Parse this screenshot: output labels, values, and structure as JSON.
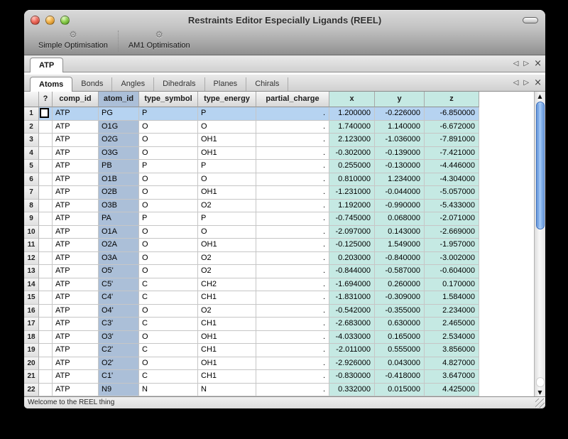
{
  "window": {
    "title": "Restraints Editor Especially Ligands (REEL)",
    "status_text": "Welcome to the REEL thing"
  },
  "icons": {
    "gear": "⚙",
    "tab_prev": "◁",
    "tab_next": "▷",
    "tab_close": "×",
    "scroll_up": "▲",
    "scroll_down": "▼"
  },
  "colors": {
    "traffic_close": "#ee6a5c",
    "traffic_minimize": "#f2b24c",
    "traffic_zoom": "#8ccf4f",
    "selection_blue": "#b6d3f1",
    "atom_id_column": "#abbfd8",
    "coordinate_columns": "#c5e9e3"
  },
  "toolbar": {
    "items": [
      {
        "label": "Simple Optimisation"
      },
      {
        "label": "AM1 Optimisation"
      }
    ]
  },
  "document_tabs": {
    "tabs": [
      {
        "label": "ATP",
        "active": true
      }
    ]
  },
  "section_tabs": {
    "tabs": [
      {
        "label": "Atoms",
        "active": true
      },
      {
        "label": "Bonds"
      },
      {
        "label": "Angles"
      },
      {
        "label": "Dihedrals"
      },
      {
        "label": "Planes"
      },
      {
        "label": "Chirals"
      }
    ]
  },
  "table": {
    "columns": [
      "?",
      "comp_id",
      "atom_id",
      "type_symbol",
      "type_energy",
      "partial_charge",
      "x",
      "y",
      "z"
    ],
    "selected_row": 1,
    "rows": [
      {
        "num": "1",
        "comp_id": "ATP",
        "atom_id": "PG",
        "type_symbol": "P",
        "type_energy": "P",
        "partial_charge": ".",
        "x": "1.200000",
        "y": "-0.226000",
        "z": "-6.850000",
        "selected": true
      },
      {
        "num": "2",
        "comp_id": "ATP",
        "atom_id": "O1G",
        "type_symbol": "O",
        "type_energy": "O",
        "partial_charge": ".",
        "x": "1.740000",
        "y": "1.140000",
        "z": "-6.672000"
      },
      {
        "num": "3",
        "comp_id": "ATP",
        "atom_id": "O2G",
        "type_symbol": "O",
        "type_energy": "OH1",
        "partial_charge": ".",
        "x": "2.123000",
        "y": "-1.036000",
        "z": "-7.891000"
      },
      {
        "num": "4",
        "comp_id": "ATP",
        "atom_id": "O3G",
        "type_symbol": "O",
        "type_energy": "OH1",
        "partial_charge": ".",
        "x": "-0.302000",
        "y": "-0.139000",
        "z": "-7.421000"
      },
      {
        "num": "5",
        "comp_id": "ATP",
        "atom_id": "PB",
        "type_symbol": "P",
        "type_energy": "P",
        "partial_charge": ".",
        "x": "0.255000",
        "y": "-0.130000",
        "z": "-4.446000"
      },
      {
        "num": "6",
        "comp_id": "ATP",
        "atom_id": "O1B",
        "type_symbol": "O",
        "type_energy": "O",
        "partial_charge": ".",
        "x": "0.810000",
        "y": "1.234000",
        "z": "-4.304000"
      },
      {
        "num": "7",
        "comp_id": "ATP",
        "atom_id": "O2B",
        "type_symbol": "O",
        "type_energy": "OH1",
        "partial_charge": ".",
        "x": "-1.231000",
        "y": "-0.044000",
        "z": "-5.057000"
      },
      {
        "num": "8",
        "comp_id": "ATP",
        "atom_id": "O3B",
        "type_symbol": "O",
        "type_energy": "O2",
        "partial_charge": ".",
        "x": "1.192000",
        "y": "-0.990000",
        "z": "-5.433000"
      },
      {
        "num": "9",
        "comp_id": "ATP",
        "atom_id": "PA",
        "type_symbol": "P",
        "type_energy": "P",
        "partial_charge": ".",
        "x": "-0.745000",
        "y": "0.068000",
        "z": "-2.071000"
      },
      {
        "num": "10",
        "comp_id": "ATP",
        "atom_id": "O1A",
        "type_symbol": "O",
        "type_energy": "O",
        "partial_charge": ".",
        "x": "-2.097000",
        "y": "0.143000",
        "z": "-2.669000"
      },
      {
        "num": "11",
        "comp_id": "ATP",
        "atom_id": "O2A",
        "type_symbol": "O",
        "type_energy": "OH1",
        "partial_charge": ".",
        "x": "-0.125000",
        "y": "1.549000",
        "z": "-1.957000"
      },
      {
        "num": "12",
        "comp_id": "ATP",
        "atom_id": "O3A",
        "type_symbol": "O",
        "type_energy": "O2",
        "partial_charge": ".",
        "x": "0.203000",
        "y": "-0.840000",
        "z": "-3.002000"
      },
      {
        "num": "13",
        "comp_id": "ATP",
        "atom_id": "O5'",
        "type_symbol": "O",
        "type_energy": "O2",
        "partial_charge": ".",
        "x": "-0.844000",
        "y": "-0.587000",
        "z": "-0.604000"
      },
      {
        "num": "14",
        "comp_id": "ATP",
        "atom_id": "C5'",
        "type_symbol": "C",
        "type_energy": "CH2",
        "partial_charge": ".",
        "x": "-1.694000",
        "y": "0.260000",
        "z": "0.170000"
      },
      {
        "num": "15",
        "comp_id": "ATP",
        "atom_id": "C4'",
        "type_symbol": "C",
        "type_energy": "CH1",
        "partial_charge": ".",
        "x": "-1.831000",
        "y": "-0.309000",
        "z": "1.584000"
      },
      {
        "num": "16",
        "comp_id": "ATP",
        "atom_id": "O4'",
        "type_symbol": "O",
        "type_energy": "O2",
        "partial_charge": ".",
        "x": "-0.542000",
        "y": "-0.355000",
        "z": "2.234000"
      },
      {
        "num": "17",
        "comp_id": "ATP",
        "atom_id": "C3'",
        "type_symbol": "C",
        "type_energy": "CH1",
        "partial_charge": ".",
        "x": "-2.683000",
        "y": "0.630000",
        "z": "2.465000"
      },
      {
        "num": "18",
        "comp_id": "ATP",
        "atom_id": "O3'",
        "type_symbol": "O",
        "type_energy": "OH1",
        "partial_charge": ".",
        "x": "-4.033000",
        "y": "0.165000",
        "z": "2.534000"
      },
      {
        "num": "19",
        "comp_id": "ATP",
        "atom_id": "C2'",
        "type_symbol": "C",
        "type_energy": "CH1",
        "partial_charge": ".",
        "x": "-2.011000",
        "y": "0.555000",
        "z": "3.856000"
      },
      {
        "num": "20",
        "comp_id": "ATP",
        "atom_id": "O2'",
        "type_symbol": "O",
        "type_energy": "OH1",
        "partial_charge": ".",
        "x": "-2.926000",
        "y": "0.043000",
        "z": "4.827000"
      },
      {
        "num": "21",
        "comp_id": "ATP",
        "atom_id": "C1'",
        "type_symbol": "C",
        "type_energy": "CH1",
        "partial_charge": ".",
        "x": "-0.830000",
        "y": "-0.418000",
        "z": "3.647000"
      },
      {
        "num": "22",
        "comp_id": "ATP",
        "atom_id": "N9",
        "type_symbol": "N",
        "type_energy": "N",
        "partial_charge": ".",
        "x": "0.332000",
        "y": "0.015000",
        "z": "4.425000"
      }
    ]
  }
}
